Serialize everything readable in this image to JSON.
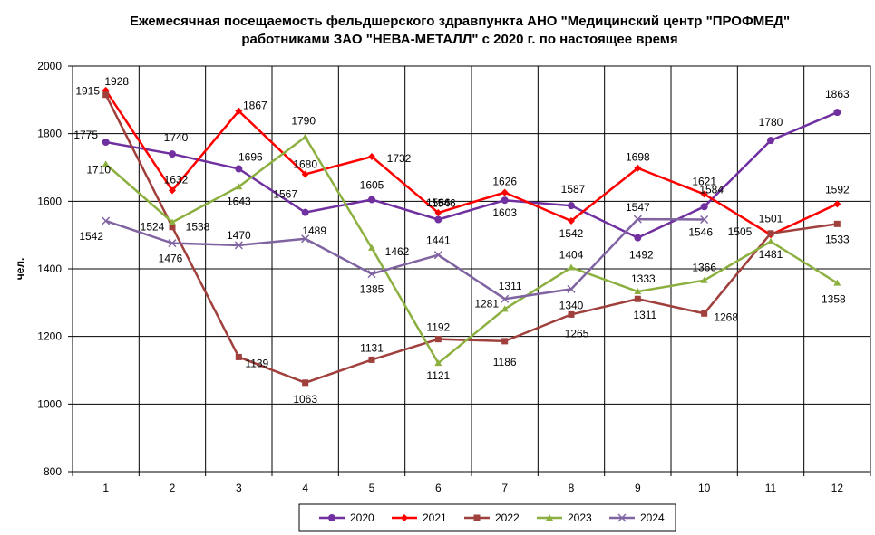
{
  "chart_data": {
    "type": "line",
    "title_lines": [
      "Ежемесячная посещаемость фельдшерского здравпункта АНО \"Медицинский центр \"ПРОФМЕД\"",
      "работниками ЗАО \"НЕВА-МЕТАЛЛ\" с 2020 г. по настоящее время"
    ],
    "xlabel": "",
    "ylabel": "чел.",
    "categories": [
      "1",
      "2",
      "3",
      "4",
      "5",
      "6",
      "7",
      "8",
      "9",
      "10",
      "11",
      "12"
    ],
    "ylim": [
      800,
      2000
    ],
    "yticks": [
      800,
      1000,
      1200,
      1400,
      1600,
      1800,
      2000
    ],
    "grid": true,
    "legend_position": "bottom",
    "series": [
      {
        "name": "2020",
        "color": "#7030A0",
        "marker": "circle",
        "values": [
          1775,
          1740,
          1696,
          1567,
          1605,
          1546,
          1603,
          1587,
          1492,
          1584,
          1780,
          1863
        ]
      },
      {
        "name": "2021",
        "color": "#FF0000",
        "marker": "diamond",
        "values": [
          1928,
          1632,
          1867,
          1680,
          1732,
          1566,
          1626,
          1542,
          1698,
          1621,
          1501,
          1592
        ]
      },
      {
        "name": "2022",
        "color": "#A0403C",
        "marker": "square",
        "values": [
          1915,
          1524,
          1139,
          1063,
          1131,
          1192,
          1186,
          1265,
          1311,
          1268,
          1505,
          1533
        ]
      },
      {
        "name": "2023",
        "color": "#8CB040",
        "marker": "triangle",
        "values": [
          1710,
          1538,
          1643,
          1790,
          1462,
          1121,
          1281,
          1404,
          1333,
          1366,
          1481,
          1358
        ]
      },
      {
        "name": "2024",
        "color": "#8064A2",
        "marker": "x",
        "values": [
          1542,
          1476,
          1470,
          1489,
          1385,
          1441,
          1311,
          1340,
          1547,
          1546,
          null,
          null
        ]
      }
    ]
  }
}
